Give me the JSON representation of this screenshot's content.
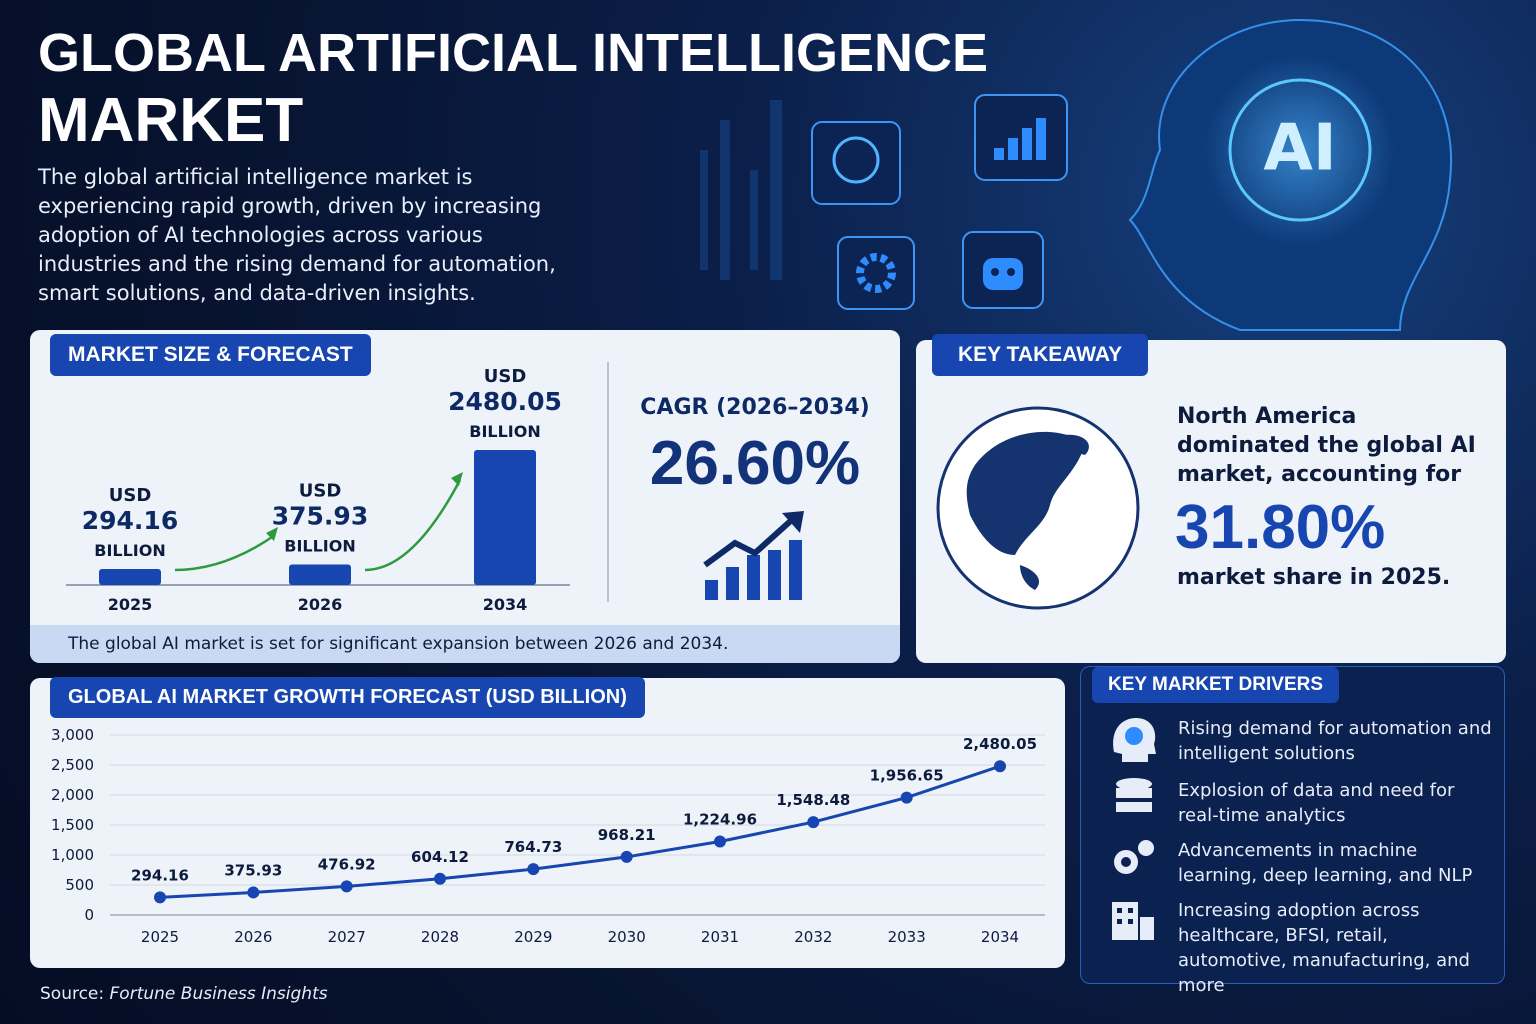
{
  "header": {
    "title_line1": "GLOBAL ARTIFICIAL INTELLIGENCE",
    "title_line2": "MARKET",
    "description": "The global artificial intelligence market is experiencing rapid growth, driven by increasing adoption of AI technologies across various industries and the rising demand for automation, smart solutions, and data-driven insights."
  },
  "hero": {
    "badge": "AI"
  },
  "market_size": {
    "heading": "MARKET SIZE & FORECAST",
    "cagr_label": "CAGR (2026–2034)",
    "cagr_value": "26.60%",
    "note": "The global AI market is set for significant expansion between 2026 and 2034."
  },
  "chart_data": [
    {
      "type": "bar",
      "unit_prefix": "USD",
      "unit_suffix": "BILLION",
      "categories": [
        "2025",
        "2026",
        "2034"
      ],
      "values": [
        294.16,
        375.93,
        2480.05
      ],
      "color": "#1746b0"
    },
    {
      "type": "line",
      "title": "GLOBAL AI MARKET GROWTH FORECAST (USD BILLION)",
      "categories": [
        "2025",
        "2026",
        "2027",
        "2028",
        "2029",
        "2030",
        "2031",
        "2032",
        "2033",
        "2034"
      ],
      "values": [
        294.16,
        375.93,
        476.92,
        604.12,
        764.73,
        968.21,
        1224.96,
        1548.48,
        1956.65,
        2480.05
      ],
      "value_labels": [
        "294.16",
        "375.93",
        "476.92",
        "604.12",
        "764.73",
        "968.21",
        "1,224.96",
        "1,548.48",
        "1,956.65",
        "2,480.05"
      ],
      "color": "#1746b0",
      "ylim": [
        0,
        3000
      ],
      "yticks": [
        0,
        500,
        {
          "value": 1000,
          "label": "1,000"
        },
        {
          "value": 1500,
          "label": "1,500"
        },
        {
          "value": 2000,
          "label": "2,000"
        },
        {
          "value": 2500,
          "label": "2,500"
        },
        {
          "value": 3000,
          "label": "3,000"
        }
      ],
      "grid": true
    }
  ],
  "key_takeaway": {
    "heading": "KEY TAKEAWAY",
    "text_before": "North America dominated the global AI market, accounting for",
    "value": "31.80%",
    "text_after": "market share in 2025."
  },
  "drivers": {
    "heading": "KEY MARKET DRIVERS",
    "items": [
      "Rising demand for automation and intelligent solutions",
      "Explosion of data and need for real-time analytics",
      "Advancements in machine learning, deep learning, and NLP",
      "Increasing adoption across healthcare, BFSI, retail, automotive, manufacturing, and more"
    ]
  },
  "source": {
    "label": "Source:",
    "name": "Fortune Business Insights"
  }
}
